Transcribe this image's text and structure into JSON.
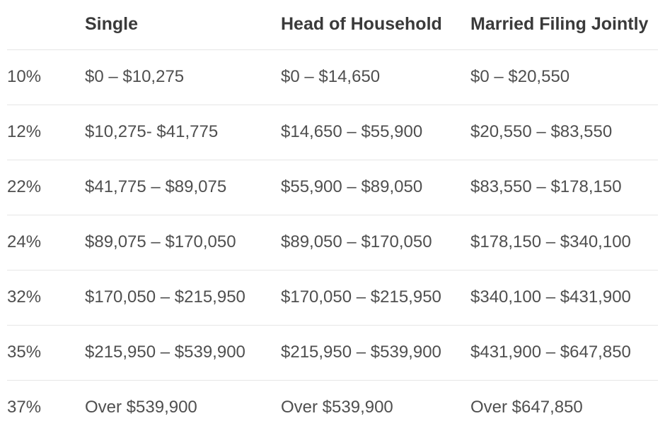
{
  "chart_data": {
    "type": "table",
    "title": "",
    "columns": [
      "",
      "Single",
      "Head of Household",
      "Married Filing Jointly"
    ],
    "rows": [
      [
        "10%",
        "$0 – $10,275",
        "$0 – $14,650",
        "$0 – $20,550"
      ],
      [
        "12%",
        "$10,275- $41,775",
        "$14,650 – $55,900",
        "$20,550 – $83,550"
      ],
      [
        "22%",
        "$41,775 – $89,075",
        "$55,900 – $89,050",
        "$83,550 – $178,150"
      ],
      [
        "24%",
        "$89,075 – $170,050",
        "$89,050 – $170,050",
        "$178,150 – $340,100"
      ],
      [
        "32%",
        "$170,050 – $215,950",
        "$170,050 – $215,950",
        "$340,100 – $431,900"
      ],
      [
        "35%",
        "$215,950 – $539,900",
        "$215,950 – $539,900",
        "$431,900 – $647,850"
      ],
      [
        "37%",
        "Over $539,900",
        "Over $539,900",
        "Over $647,850"
      ]
    ],
    "layout": {
      "grid": "horizontal-dividers-only",
      "header_bold": true
    }
  },
  "colors": {
    "background": "#ffffff",
    "header_text": "#3a3a3a",
    "body_text": "#4f4f4f",
    "divider": "#e6e6e6"
  }
}
